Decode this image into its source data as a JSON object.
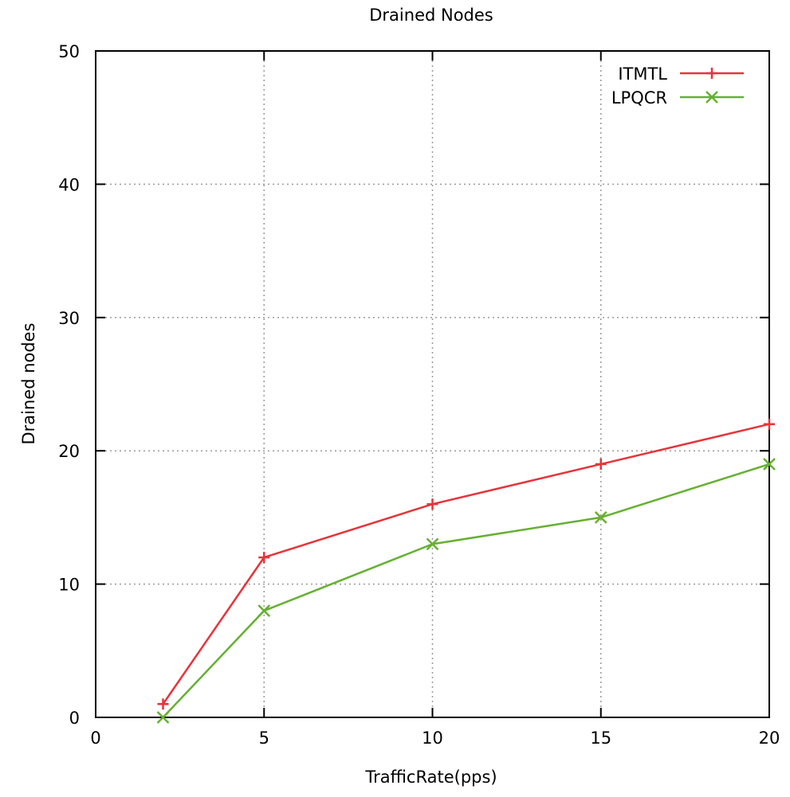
{
  "chart_data": {
    "type": "line",
    "title": "Drained Nodes",
    "xlabel": "TrafficRate(pps)",
    "ylabel": "Drained nodes",
    "xlim": [
      0,
      20
    ],
    "ylim": [
      0,
      50
    ],
    "xticks": [
      0,
      5,
      10,
      15,
      20
    ],
    "yticks": [
      0,
      10,
      20,
      30,
      40,
      50
    ],
    "grid": true,
    "legend_position": "top-right",
    "series": [
      {
        "name": "ITMTL",
        "color": "#e8333a",
        "marker": "plus",
        "x": [
          2,
          5,
          10,
          15,
          20
        ],
        "y": [
          1,
          12,
          16,
          19,
          22
        ]
      },
      {
        "name": "LPQCR",
        "color": "#66b032",
        "marker": "cross",
        "x": [
          2,
          5,
          10,
          15,
          20
        ],
        "y": [
          0,
          8,
          13,
          15,
          19
        ]
      }
    ]
  }
}
